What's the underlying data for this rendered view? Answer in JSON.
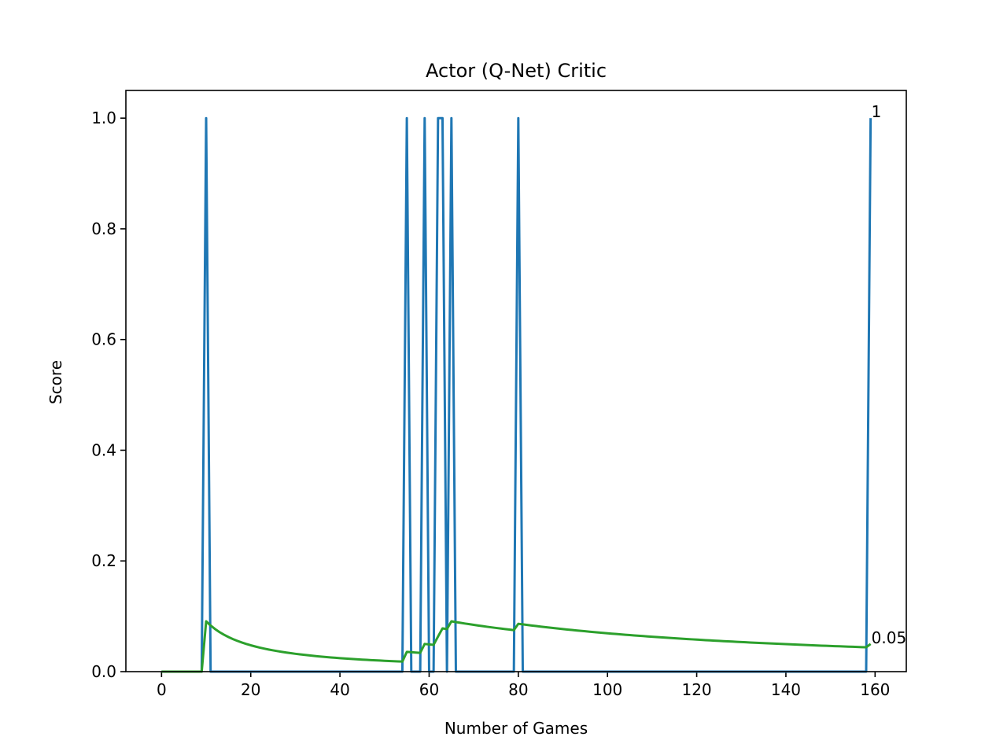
{
  "chart_data": {
    "type": "line",
    "title": "Actor (Q-Net) Critic",
    "xlabel": "Number of Games",
    "ylabel": "Score",
    "xlim": [
      -8,
      167
    ],
    "ylim": [
      0,
      1.05
    ],
    "xticks": [
      0,
      20,
      40,
      60,
      80,
      100,
      120,
      140,
      160
    ],
    "yticks": [
      0.0,
      0.2,
      0.4,
      0.6,
      0.8,
      1.0
    ],
    "xtick_labels": [
      "0",
      "20",
      "40",
      "60",
      "80",
      "100",
      "120",
      "140",
      "160"
    ],
    "ytick_labels": [
      "0.0",
      "0.2",
      "0.4",
      "0.6",
      "0.8",
      "1.0"
    ],
    "grid": false,
    "series": [
      {
        "color": "#1f77b4",
        "spikes_at": [
          10,
          55,
          59,
          62,
          63,
          65,
          80,
          159
        ],
        "n_points": 160
      },
      {
        "color": "#2ca02c",
        "description": "running mean of scores",
        "n_points": 160
      }
    ],
    "annotations": [
      {
        "text": "1",
        "x": 159,
        "y": 1.0
      },
      {
        "text": "0.05",
        "x": 159,
        "y": 0.05
      }
    ]
  }
}
